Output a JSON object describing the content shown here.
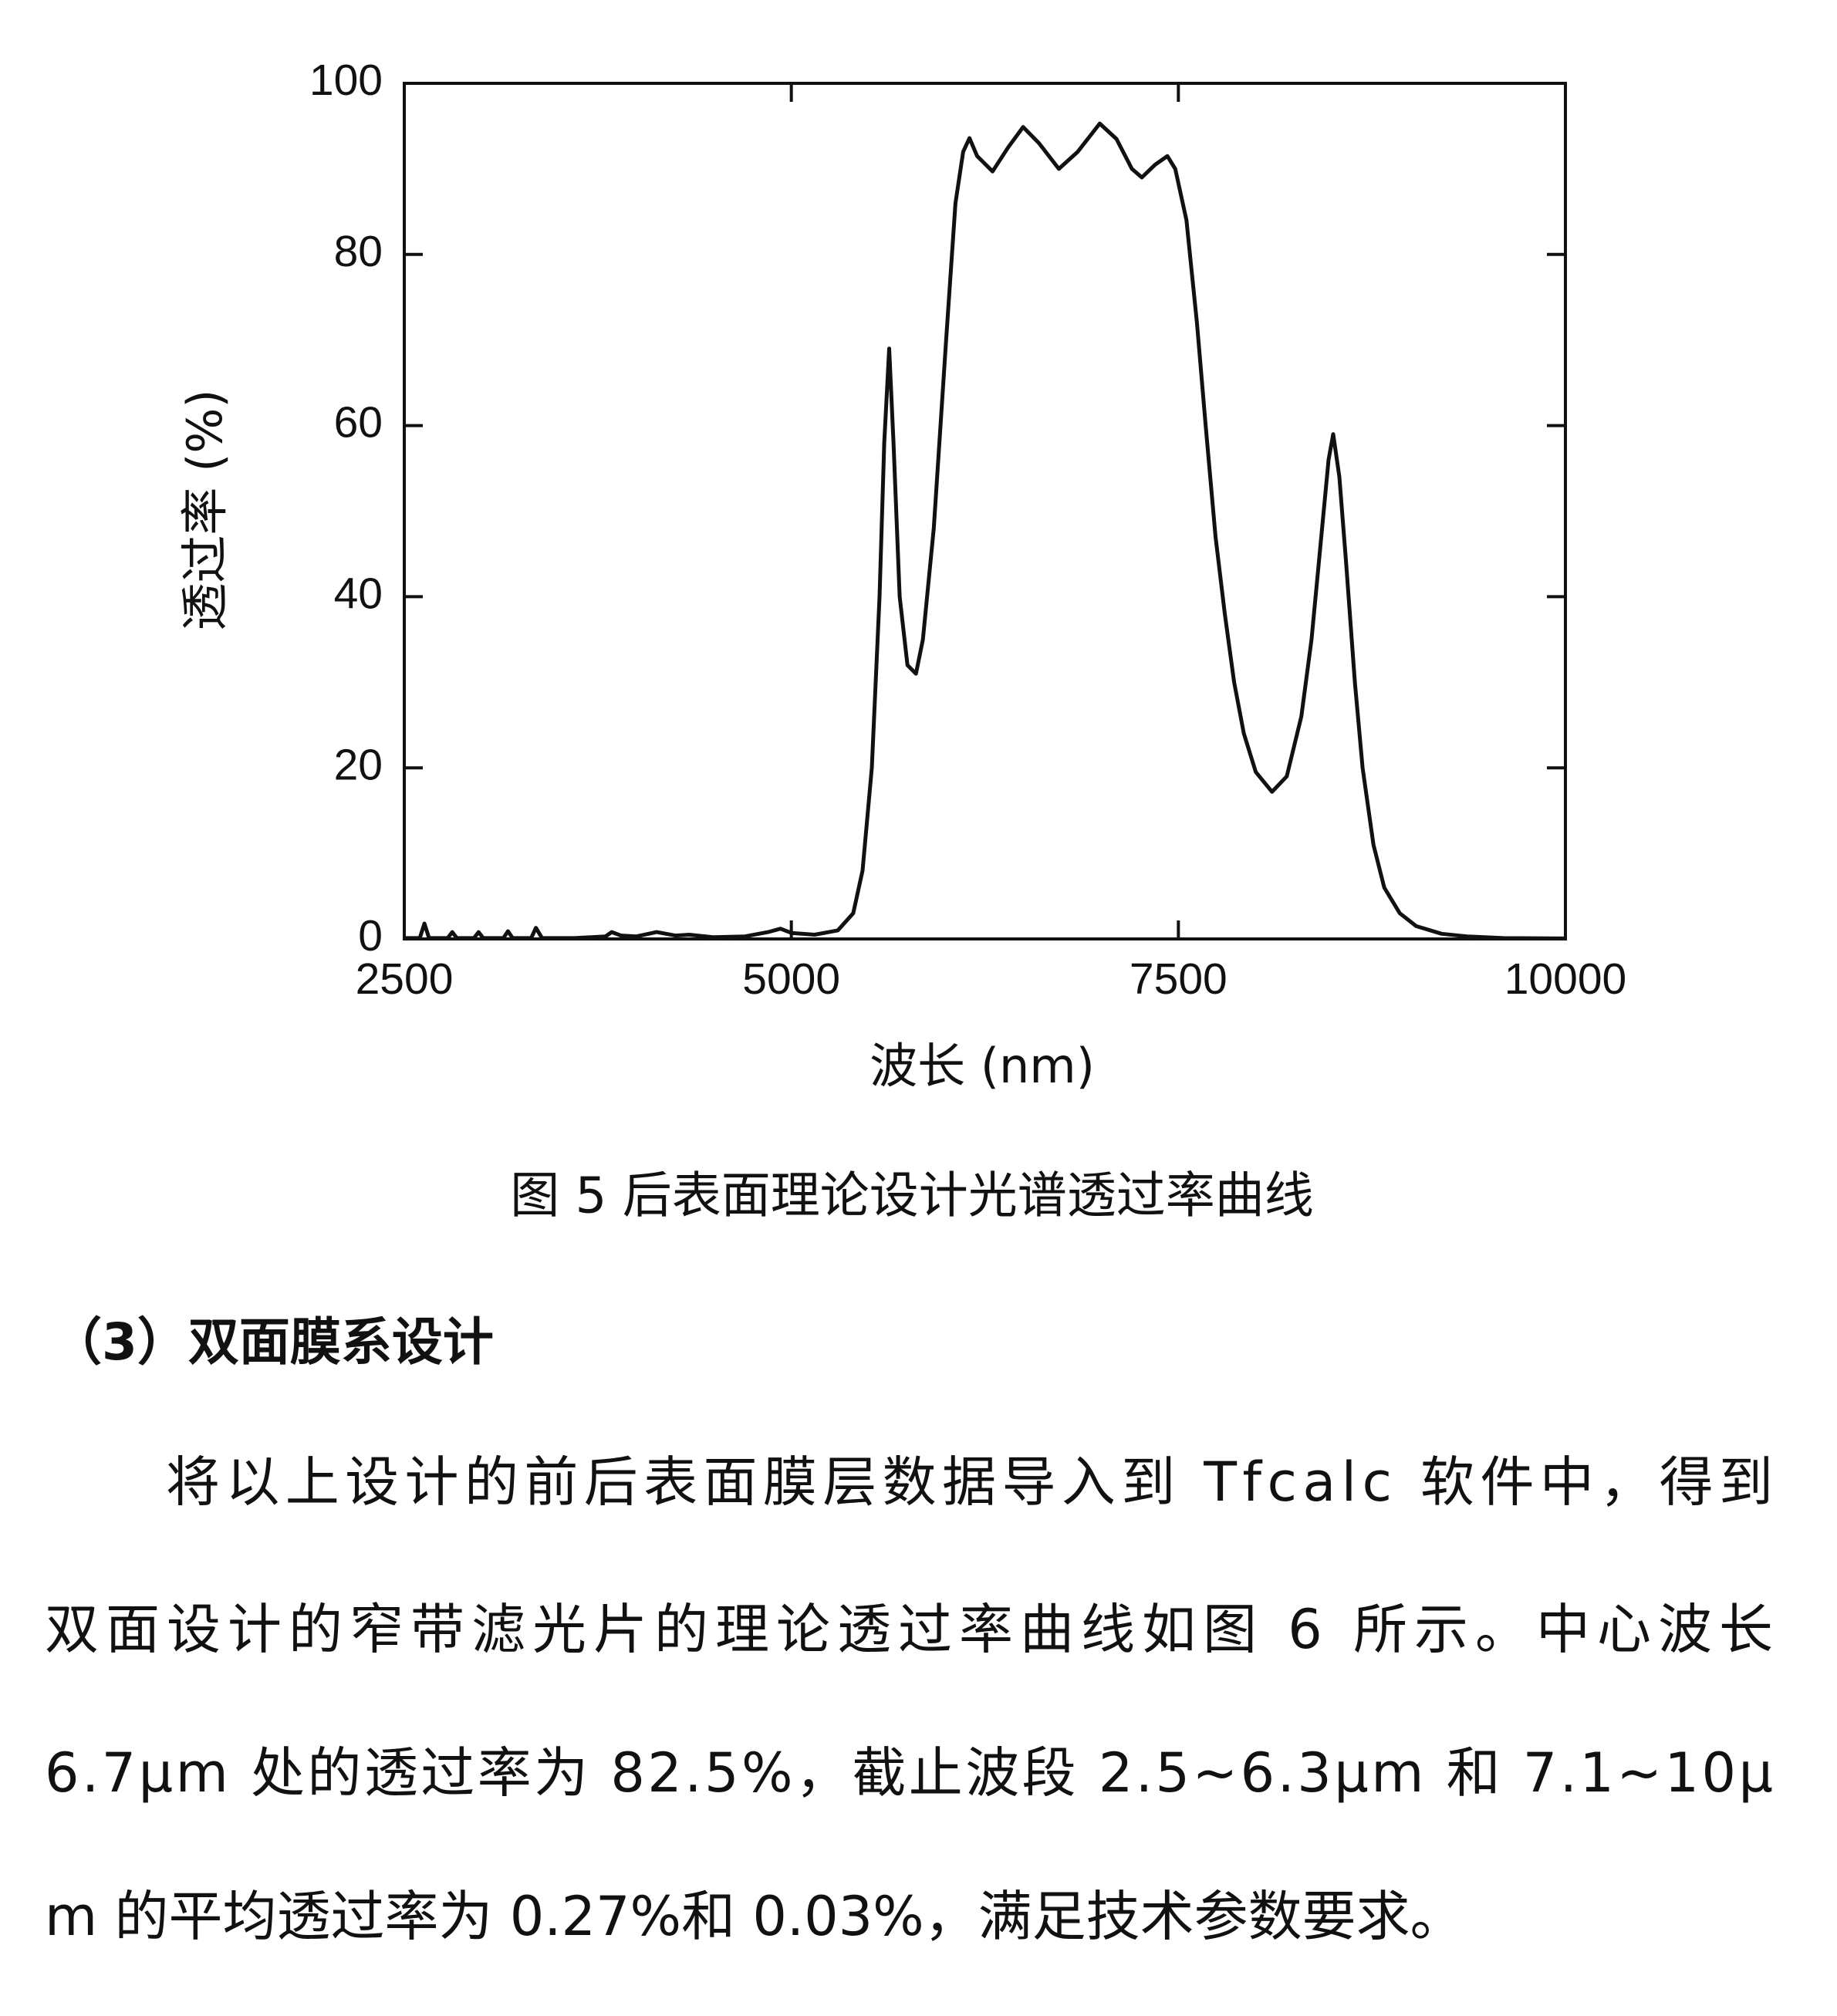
{
  "chart_data": {
    "type": "line",
    "xlabel": "波长 (nm)",
    "ylabel": "透过率 (%)",
    "xlim": [
      2500,
      10000
    ],
    "ylim": [
      0,
      100
    ],
    "xticks": [
      2500,
      5000,
      7500,
      10000
    ],
    "yticks": [
      0,
      20,
      40,
      60,
      80,
      100
    ],
    "color": "#111111",
    "x": [
      2500,
      2600,
      2630,
      2660,
      2780,
      2810,
      2840,
      2950,
      2980,
      3010,
      3140,
      3170,
      3200,
      3320,
      3350,
      3390,
      3600,
      3800,
      3840,
      3900,
      4000,
      4130,
      4250,
      4340,
      4500,
      4700,
      4850,
      4930,
      5000,
      5150,
      5300,
      5400,
      5460,
      5520,
      5570,
      5600,
      5632,
      5660,
      5700,
      5750,
      5805,
      5850,
      5920,
      6000,
      6060,
      6110,
      6151,
      6200,
      6300,
      6400,
      6497,
      6600,
      6728,
      6850,
      6992,
      7100,
      7200,
      7264,
      7350,
      7429,
      7480,
      7552,
      7620,
      7676,
      7740,
      7800,
      7860,
      7923,
      8000,
      8105,
      8200,
      8294,
      8360,
      8418,
      8470,
      8500,
      8540,
      8583,
      8640,
      8690,
      8760,
      8830,
      8930,
      9036,
      9200,
      9365,
      9600,
      10000
    ],
    "values": [
      0.1,
      0.1,
      1.8,
      0.1,
      0.1,
      0.8,
      0.1,
      0.1,
      0.8,
      0.1,
      0.1,
      0.9,
      0.1,
      0.1,
      1.3,
      0.1,
      0.1,
      0.3,
      0.8,
      0.4,
      0.3,
      0.8,
      0.4,
      0.5,
      0.2,
      0.3,
      0.8,
      1.2,
      0.7,
      0.5,
      1,
      3,
      8,
      20,
      40,
      58,
      69,
      58,
      40,
      32,
      31,
      35,
      48,
      70,
      86,
      92,
      93.6,
      91.5,
      89.7,
      92.5,
      94.9,
      93,
      90,
      92,
      95.3,
      93.5,
      90,
      89,
      90.5,
      91.5,
      90,
      84,
      72,
      60,
      47,
      38,
      30,
      24,
      19.5,
      17.2,
      19,
      26,
      35,
      46,
      56,
      59,
      54,
      44,
      30,
      20,
      11,
      6,
      3,
      1.5,
      0.6,
      0.3,
      0.1,
      0.05
    ]
  },
  "caption": "图 5  后表面理论设计光谱透过率曲线",
  "heading": "（3）双面膜系设计",
  "paragraph": [
    "将以上设计的前后表面膜层数据导入到 Tfcalc 软件中，得到",
    "双面设计的窄带滤光片的理论透过率曲线如图 6 所示。中心波长",
    "6.7μm 处的透过率为 82.5%，截止波段 2.5~6.3μm 和 7.1~10μ",
    "m 的平均透过率为 0.27%和 0.03%，满足技术参数要求。"
  ]
}
